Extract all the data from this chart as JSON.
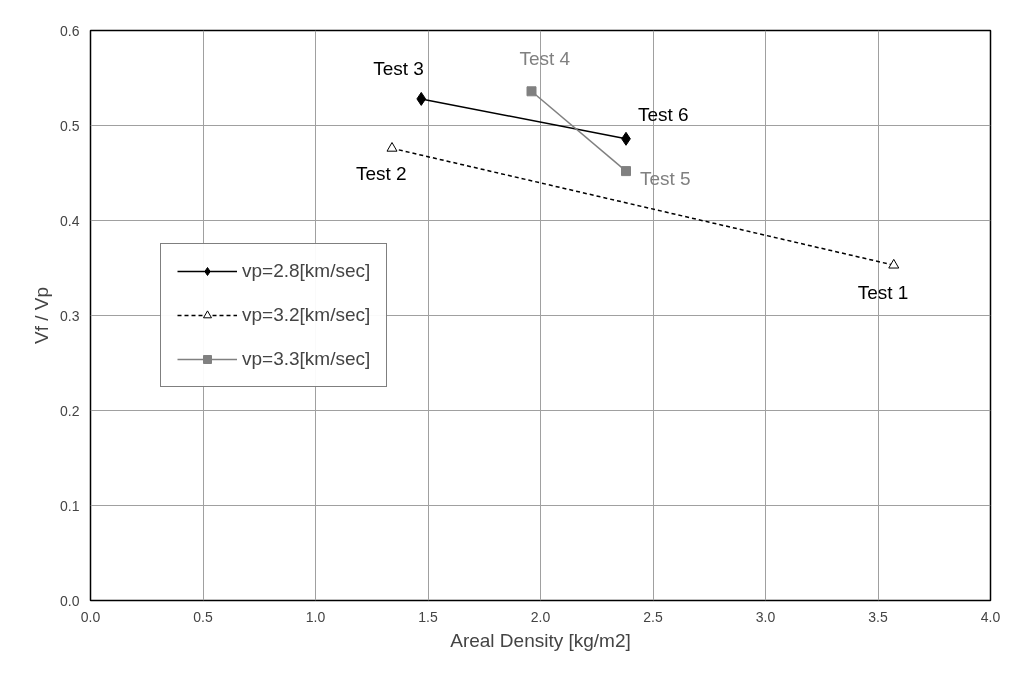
{
  "chart_data": {
    "type": "line",
    "xlabel": "Areal Density [kg/m2]",
    "ylabel": "Vf / Vp",
    "xlim": [
      0.0,
      4.0
    ],
    "xticks": [
      {
        "value": 0,
        "label": "0.0"
      },
      {
        "value": 0.5,
        "label": "0.5"
      },
      {
        "value": 1,
        "label": "1.0"
      },
      {
        "value": 1.5,
        "label": "1.5"
      },
      {
        "value": 2,
        "label": "2.0"
      },
      {
        "value": 2.5,
        "label": "2.5"
      },
      {
        "value": 3,
        "label": "3.0"
      },
      {
        "value": 3.5,
        "label": "3.5"
      },
      {
        "value": 4,
        "label": "4.0"
      }
    ],
    "ylim": [
      0.0,
      0.6
    ],
    "yticks": [
      {
        "value": 0,
        "label": "0.0"
      },
      {
        "value": 0.1,
        "label": "0.1"
      },
      {
        "value": 0.2,
        "label": "0.2"
      },
      {
        "value": 0.3,
        "label": "0.3"
      },
      {
        "value": 0.4,
        "label": "0.4"
      },
      {
        "value": 0.5,
        "label": "0.5"
      },
      {
        "value": 0.6,
        "label": "0.6"
      }
    ],
    "grid": true,
    "legend": "left",
    "series": [
      {
        "name": "vp=2.8[km/sec]",
        "color": "#000000",
        "marker": "diamond",
        "line_style": "solid",
        "x": [
          1.47,
          2.38
        ],
        "values": [
          0.528,
          0.486
        ]
      },
      {
        "name": "vp=3.2[km/sec]",
        "color": "#000000",
        "marker": "triangle",
        "line_style": "dashed",
        "x": [
          1.34,
          3.57
        ],
        "values": [
          0.476,
          0.353
        ]
      },
      {
        "name": "vp=3.3[km/sec]",
        "color": "#808080",
        "marker": "square",
        "line_style": "solid",
        "x": [
          1.96,
          2.38
        ],
        "values": [
          0.536,
          0.452
        ]
      }
    ],
    "annotations": [
      {
        "text": "Test 3",
        "x": 1.47,
        "y": 0.528
      },
      {
        "text": "Test 4",
        "x": 1.96,
        "y": 0.536
      },
      {
        "text": "Test 6",
        "x": 2.38,
        "y": 0.486
      },
      {
        "text": "Test 5",
        "x": 2.38,
        "y": 0.452
      },
      {
        "text": "Test 2",
        "x": 1.34,
        "y": 0.476
      },
      {
        "text": "Test 1",
        "x": 3.57,
        "y": 0.353
      }
    ]
  }
}
